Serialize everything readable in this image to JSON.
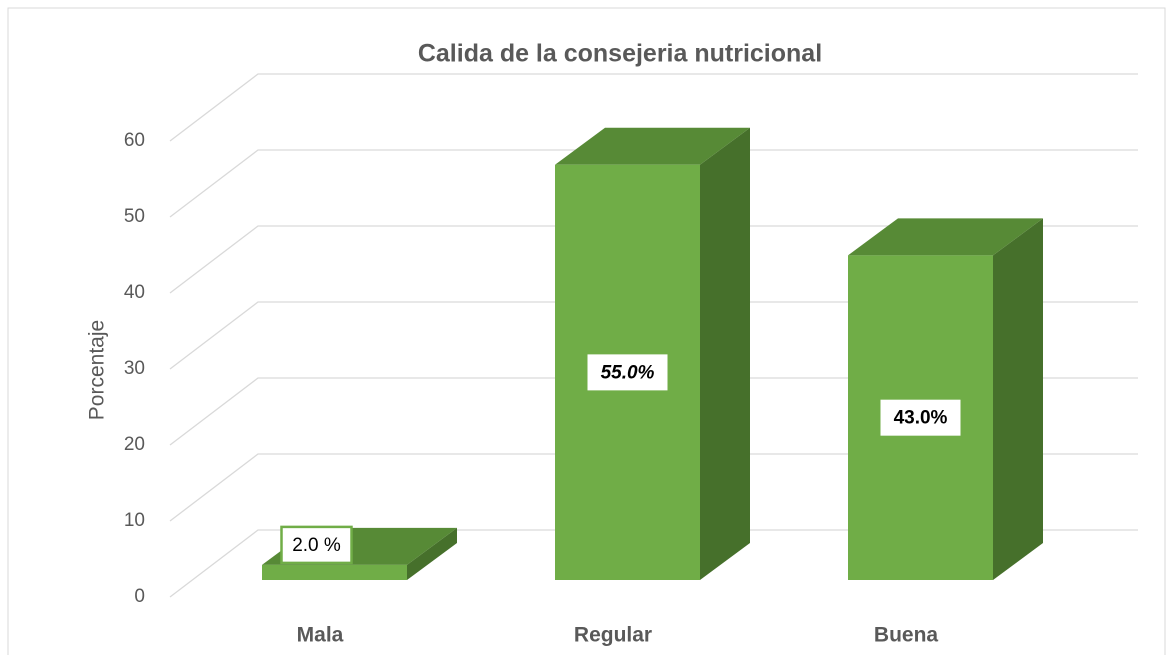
{
  "chart_data": {
    "type": "bar3d",
    "title": "Calida de la consejeria nutricional",
    "y_label": "Porcentaje",
    "categories": [
      "Mala",
      "Regular",
      "Buena"
    ],
    "values": [
      2,
      55,
      43
    ],
    "value_labels": [
      "2.0 %",
      "55.0%",
      "43.0%"
    ],
    "color": "#70ad47",
    "ylim": [
      0,
      60
    ],
    "yticks": [
      0,
      10,
      20,
      30,
      40,
      50,
      60
    ],
    "grid": true
  }
}
